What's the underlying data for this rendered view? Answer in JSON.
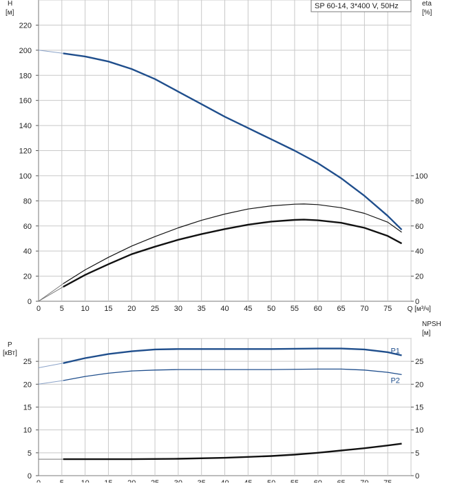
{
  "chart_data": [
    {
      "type": "line",
      "title": "SP 60-14, 3*400 V, 50Hz",
      "left_axis_label": [
        "H",
        "[м]"
      ],
      "right_axis_label": [
        "eta",
        "[%]"
      ],
      "xlabel": "Q [м³/ч]",
      "xlim": [
        0,
        80
      ],
      "x_ticks": [
        0,
        5,
        10,
        15,
        20,
        25,
        30,
        35,
        40,
        45,
        50,
        55,
        60,
        65,
        70,
        75
      ],
      "ylim": [
        0,
        240
      ],
      "y_ticks": [
        0,
        20,
        40,
        60,
        80,
        100,
        120,
        140,
        160,
        180,
        200,
        220
      ],
      "y2lim": [
        0,
        240
      ],
      "y2_ticks": [
        0,
        20,
        40,
        60,
        80,
        100
      ],
      "grid": true,
      "series": [
        {
          "color": "#1f4e8c",
          "axis": "left",
          "x": [
            0,
            5.3,
            10,
            15,
            20,
            25,
            30,
            35,
            40,
            45,
            50,
            55,
            60,
            65,
            70,
            75,
            78
          ],
          "values": [
            200,
            197.5,
            195,
            191,
            185,
            177,
            167,
            157,
            147,
            138,
            129,
            120,
            110,
            98,
            84,
            68,
            57
          ]
        },
        {
          "color": "#111111",
          "axis": "right",
          "x": [
            0,
            5.3,
            10,
            15,
            20,
            25,
            30,
            35,
            40,
            45,
            50,
            55,
            57,
            60,
            65,
            70,
            75,
            78
          ],
          "values": [
            0,
            14,
            25,
            35,
            44,
            51.5,
            58.5,
            64.5,
            69.5,
            73.5,
            76,
            77.3,
            77.5,
            77,
            74.5,
            70,
            63,
            55
          ]
        },
        {
          "color": "#111111",
          "axis": "right",
          "x": [
            0,
            5.3,
            10,
            15,
            20,
            25,
            30,
            35,
            40,
            45,
            50,
            55,
            57,
            60,
            65,
            70,
            75,
            78
          ],
          "values": [
            0,
            11.5,
            21,
            29.5,
            37.5,
            43.5,
            49,
            53.5,
            57.5,
            61,
            63.5,
            64.8,
            65,
            64.5,
            62.5,
            58.5,
            52,
            46
          ]
        }
      ]
    },
    {
      "type": "line",
      "left_axis_label": [
        "P",
        "[кВт]"
      ],
      "right_axis_label": [
        "NPSH",
        "[м]"
      ],
      "xlim": [
        0,
        80
      ],
      "x_ticks": [
        0,
        5,
        10,
        15,
        20,
        25,
        30,
        35,
        40,
        45,
        50,
        55,
        60,
        65,
        70,
        75
      ],
      "ylim": [
        0,
        30
      ],
      "y_ticks": [
        0,
        5,
        10,
        15,
        20,
        25
      ],
      "y2lim": [
        0,
        30
      ],
      "y2_ticks": [
        0,
        5,
        10,
        15,
        20,
        25
      ],
      "grid": true,
      "series": [
        {
          "name": "P1",
          "color": "#1f4e8c",
          "axis": "left",
          "x": [
            0,
            5.3,
            10,
            15,
            20,
            25,
            30,
            40,
            50,
            60,
            65,
            70,
            75,
            78
          ],
          "values": [
            23.6,
            24.6,
            25.7,
            26.6,
            27.2,
            27.6,
            27.7,
            27.7,
            27.7,
            27.8,
            27.8,
            27.6,
            27.0,
            26.3
          ]
        },
        {
          "name": "P2",
          "color": "#1f4e8c",
          "axis": "left",
          "x": [
            0,
            5.3,
            10,
            15,
            20,
            25,
            30,
            40,
            50,
            60,
            65,
            70,
            75,
            78
          ],
          "values": [
            20.0,
            20.8,
            21.7,
            22.4,
            22.9,
            23.1,
            23.2,
            23.2,
            23.2,
            23.3,
            23.3,
            23.1,
            22.6,
            22.1
          ]
        },
        {
          "color": "#111111",
          "axis": "right",
          "x": [
            0,
            5.3,
            10,
            20,
            30,
            40,
            45,
            50,
            55,
            60,
            65,
            70,
            75,
            78
          ],
          "values": [
            3.6,
            3.6,
            3.6,
            3.6,
            3.7,
            3.9,
            4.1,
            4.3,
            4.6,
            5.0,
            5.5,
            6.0,
            6.6,
            7.0
          ]
        }
      ]
    }
  ]
}
